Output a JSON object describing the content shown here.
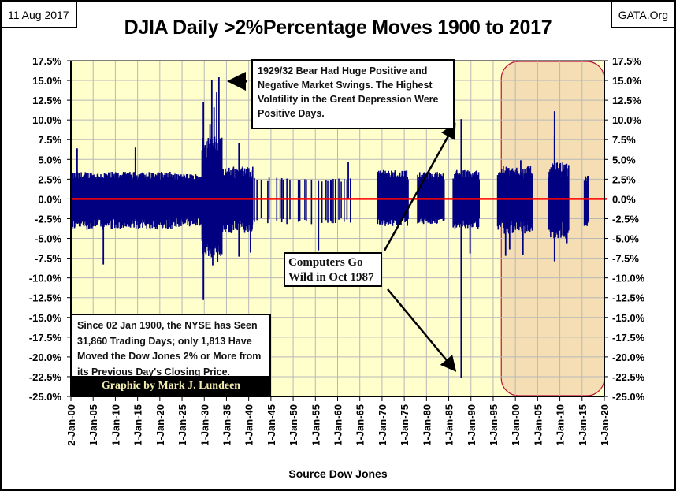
{
  "header": {
    "date": "11 Aug 2017",
    "site": "GATA.Org"
  },
  "chart_data": {
    "type": "bar",
    "title": "DJIA Daily >2%Percentage Moves 1900 to 2017",
    "xlabel": "Source Dow Jones",
    "ylabel": "",
    "ylim": [
      -25,
      17.5
    ],
    "xlim": [
      1900,
      2020
    ],
    "grid": true,
    "y_ticks": [
      "17.5%",
      "15.0%",
      "12.5%",
      "10.0%",
      "7.5%",
      "5.0%",
      "2.5%",
      "0.0%",
      "-2.5%",
      "-5.0%",
      "-7.5%",
      "-10.0%",
      "-12.5%",
      "-15.0%",
      "-17.5%",
      "-20.0%",
      "-22.5%",
      "-25.0%"
    ],
    "x_ticks": [
      "2-Jan-00",
      "1-Jan-05",
      "1-Jan-10",
      "1-Jan-15",
      "1-Jan-20",
      "1-Jan-25",
      "1-Jan-30",
      "1-Jan-35",
      "1-Jan-40",
      "1-Jan-45",
      "1-Jan-50",
      "1-Jan-55",
      "1-Jan-60",
      "1-Jan-65",
      "1-Jan-70",
      "1-Jan-75",
      "1-Jan-80",
      "1-Jan-85",
      "1-Jan-90",
      "1-Jan-95",
      "1-Jan-00",
      "1-Jan-05",
      "1-Jan-10",
      "1-Jan-15",
      "1-Jan-20"
    ],
    "colors": {
      "bars": "#000080",
      "zero_line": "#ff0000",
      "plot_bg": "#ffffcc",
      "highlight_fill": "#f5deb3",
      "highlight_border": "#c0143c"
    },
    "highlight_range": [
      1997,
      2020
    ],
    "notable_moves": [
      {
        "year": 1907.3,
        "value": -8.3
      },
      {
        "year": 1901.4,
        "value": 6.4
      },
      {
        "year": 1914.5,
        "value": 6.5
      },
      {
        "year": 1929.8,
        "value": 12.3
      },
      {
        "year": 1929.8,
        "value": -12.8
      },
      {
        "year": 1931.3,
        "value": 9.5
      },
      {
        "year": 1931.7,
        "value": 15.0
      },
      {
        "year": 1932.2,
        "value": 11.6
      },
      {
        "year": 1932.8,
        "value": 13.5
      },
      {
        "year": 1933.3,
        "value": 15.4
      },
      {
        "year": 1931.9,
        "value": -8.4
      },
      {
        "year": 1933.0,
        "value": -8.0
      },
      {
        "year": 1937.8,
        "value": 7.1
      },
      {
        "year": 1937.8,
        "value": -7.3
      },
      {
        "year": 1940.4,
        "value": -6.8
      },
      {
        "year": 1955.7,
        "value": -6.5
      },
      {
        "year": 1962.4,
        "value": 4.7
      },
      {
        "year": 1987.8,
        "value": 10.1
      },
      {
        "year": 1987.8,
        "value": -22.6
      },
      {
        "year": 1989.8,
        "value": -6.9
      },
      {
        "year": 1997.8,
        "value": -7.2
      },
      {
        "year": 1998.7,
        "value": -6.4
      },
      {
        "year": 2001.7,
        "value": -7.1
      },
      {
        "year": 2001.2,
        "value": 4.9
      },
      {
        "year": 2008.8,
        "value": 11.1
      },
      {
        "year": 2008.8,
        "value": 8.0
      },
      {
        "year": 2008.8,
        "value": -7.9
      },
      {
        "year": 2011.6,
        "value": -5.6
      }
    ],
    "activity_periods": [
      {
        "from": 1900,
        "to": 1923,
        "typical_up": 3.2,
        "typical_down": -3.6
      },
      {
        "from": 1923,
        "to": 1929.5,
        "typical_up": 3.0,
        "typical_down": -3.3
      },
      {
        "from": 1929.5,
        "to": 1934,
        "typical_up": 7.0,
        "typical_down": -6.5
      },
      {
        "from": 1934,
        "to": 1941,
        "typical_up": 3.8,
        "typical_down": -4.0
      },
      {
        "from": 1941,
        "to": 1963,
        "typical_up": 2.6,
        "typical_down": -3.0
      },
      {
        "from": 1969,
        "to": 1976,
        "typical_up": 3.4,
        "typical_down": -3.2
      },
      {
        "from": 1978,
        "to": 1984,
        "typical_up": 3.2,
        "typical_down": -3.0
      },
      {
        "from": 1986,
        "to": 1992,
        "typical_up": 3.4,
        "typical_down": -3.5
      },
      {
        "from": 1996,
        "to": 2004,
        "typical_up": 3.8,
        "typical_down": -4.0
      },
      {
        "from": 2007.5,
        "to": 2012,
        "typical_up": 4.2,
        "typical_down": -4.5
      },
      {
        "from": 2015.5,
        "to": 2016.5,
        "typical_up": 2.8,
        "typical_down": -3.3
      }
    ]
  },
  "annotations": {
    "bear_1929": "1929/32  Bear Had Huge Positive and Negative Market Swings.  The Highest Volatility in the Great Depression Were Positive Days.",
    "crash_1987": "Computers Go Wild in Oct 1987",
    "stats": "Since 02 Jan 1900,  the NYSE has Seen 31,860  Trading Days; only 1,813  Have Moved the Dow Jones 2% or More from its Previous Day's Closing Price.",
    "credit": "Graphic by Mark J. Lundeen"
  }
}
